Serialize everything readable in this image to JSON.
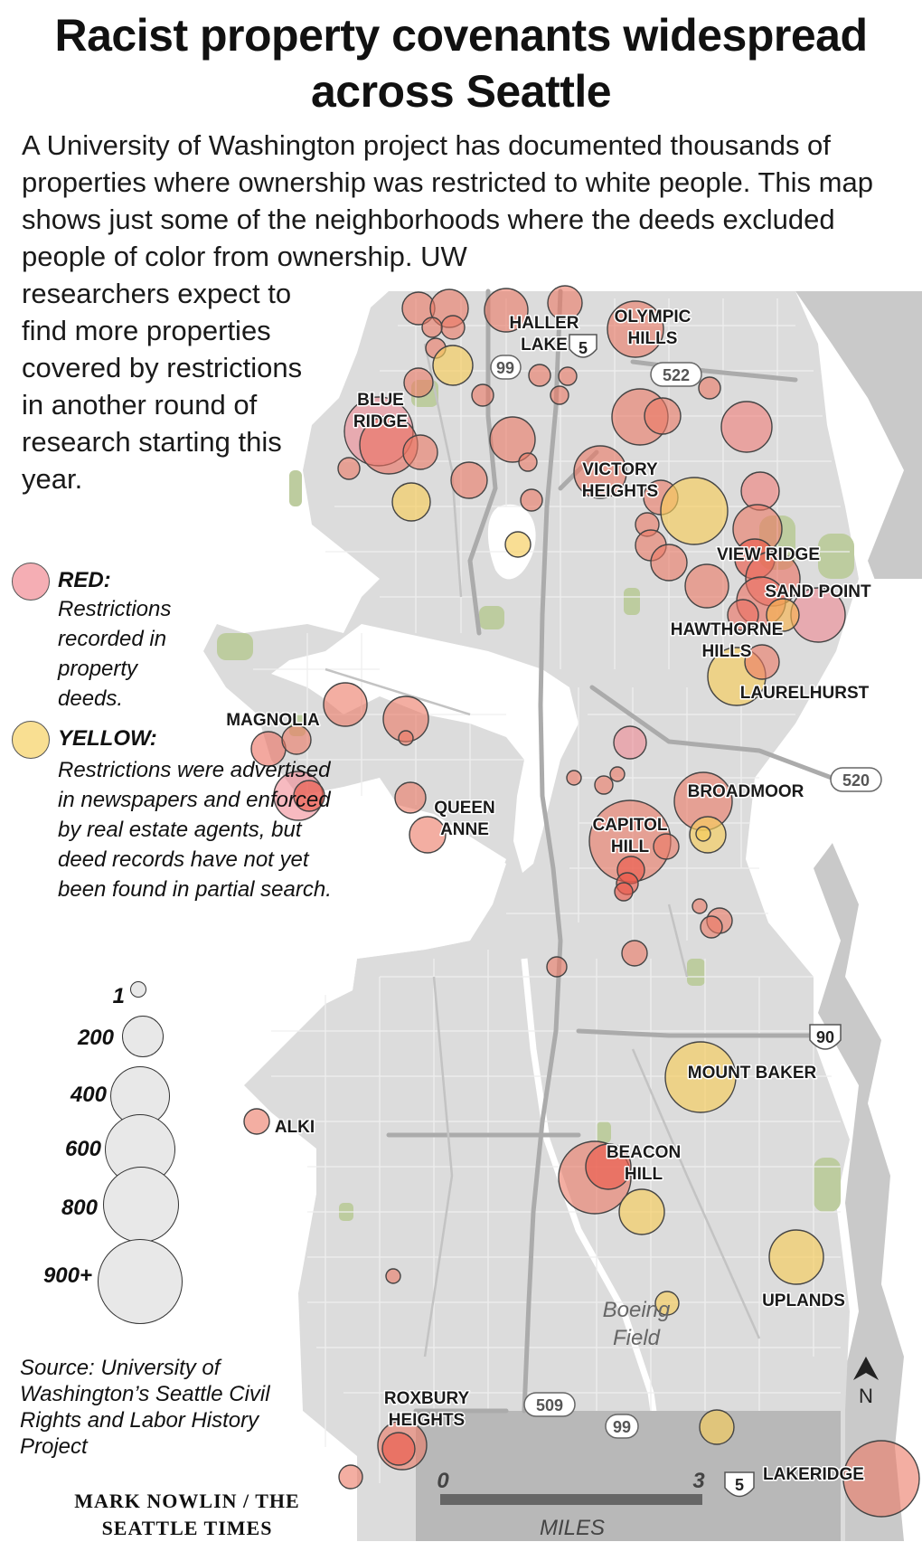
{
  "title": "Racist property covenants widespread across Seattle",
  "intro": "A University of Washington project has documented thousands of properties where ownership was restricted to white people. This map shows just some of the neighborhoods where the deeds excluded people of color from ownership. UW",
  "intro_cont": "researchers expect to find more properties covered by restrictions in another round of research starting this year.",
  "legend": {
    "red_head": "RED:",
    "red_text": "Restrictions recorded in property deeds.",
    "yellow_head": "YELLOW:",
    "yellow_text": "Restrictions were advertised in newspapers and enforced by real estate agents, but deed records have not yet been found in partial search.",
    "sizes": [
      "1",
      "200",
      "400",
      "600",
      "800",
      "900+"
    ]
  },
  "colors": {
    "red": "#ee7f78",
    "yellow": "#f6d56b",
    "water": "#ffffff",
    "land_city": "#dcdcdc",
    "land_outside": "#c9c9c9",
    "park": "#bdcc9f",
    "road": "#ababab"
  },
  "neighborhoods": {
    "haller": [
      "HALLER",
      "LAKE"
    ],
    "olympic": [
      "OLYMPIC",
      "HILLS"
    ],
    "blue": [
      "BLUE",
      "RIDGE"
    ],
    "victory": [
      "VICTORY",
      "HEIGHTS"
    ],
    "viewridge": "VIEW RIDGE",
    "sandpoint": "SAND POINT",
    "hawthorne": [
      "HAWTHORNE",
      "HILLS"
    ],
    "laurelhurst": "LAURELHURST",
    "magnolia": "MAGNOLIA",
    "queen": [
      "QUEEN",
      "ANNE"
    ],
    "broadmoor": "BROADMOOR",
    "capitol": [
      "CAPITOL",
      "HILL"
    ],
    "mountbaker": "MOUNT BAKER",
    "alki": "ALKI",
    "beacon": [
      "BEACON",
      "HILL"
    ],
    "uplands": "UPLANDS",
    "roxbury": [
      "ROXBURY",
      "HEIGHTS"
    ],
    "lakeridge": "LAKERIDGE"
  },
  "boeing": [
    "Boeing",
    "Field"
  ],
  "highways": {
    "h99a": "99",
    "h5a": "5",
    "h522": "522",
    "h520": "520",
    "h90": "90",
    "h509": "509",
    "h99b": "99",
    "h5b": "5"
  },
  "scale": {
    "zero": "0",
    "three": "3",
    "unit": "MILES"
  },
  "north": "N",
  "source": "Source: University of Washington’s Seattle Civil Rights and Labor History Project",
  "credit": "MARK NOWLIN / THE SEATTLE TIMES"
}
